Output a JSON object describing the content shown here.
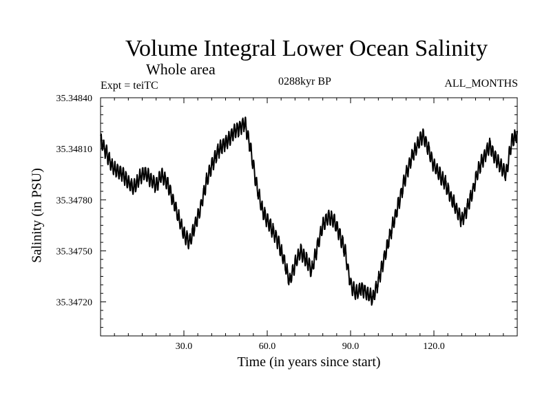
{
  "header": {
    "title": "Volume Integral Lower Ocean Salinity",
    "subtitle": "Whole area",
    "experiment": "Expt = teiTC",
    "period": "0288kyr BP",
    "months": "ALL_MONTHS"
  },
  "chart_data": {
    "type": "line",
    "title": "Volume Integral Lower Ocean Salinity",
    "xlabel": "Time (in years since start)",
    "ylabel": "Salinity (in PSU)",
    "xlim": [
      0,
      150
    ],
    "ylim": [
      35.347,
      35.3484
    ],
    "xticks": [
      30.0,
      60.0,
      90.0,
      120.0
    ],
    "xtick_labels": [
      "30.0",
      "60.0",
      "90.0",
      "120.0"
    ],
    "yticks": [
      35.3472,
      35.3475,
      35.3478,
      35.3481,
      35.3484
    ],
    "ytick_labels": [
      "35.34720",
      "35.34750",
      "35.34780",
      "35.34810",
      "35.34840"
    ],
    "grid": false,
    "series": [
      {
        "name": "Lower ocean salinity",
        "color": "#000000",
        "x": [
          0,
          2,
          4,
          6,
          8,
          10,
          12,
          14,
          16,
          18,
          20,
          22,
          24,
          26,
          28,
          30,
          32,
          34,
          36,
          38,
          40,
          42,
          44,
          46,
          48,
          50,
          52,
          54,
          56,
          58,
          60,
          62,
          64,
          66,
          68,
          70,
          72,
          74,
          76,
          78,
          80,
          82,
          84,
          86,
          88,
          90,
          92,
          94,
          96,
          98,
          100,
          102,
          104,
          106,
          108,
          110,
          112,
          114,
          116,
          118,
          120,
          122,
          124,
          126,
          128,
          130,
          132,
          134,
          136,
          138,
          140,
          142,
          144,
          146,
          148,
          150
        ],
        "values": [
          35.34815,
          35.34808,
          35.348,
          35.34797,
          35.34795,
          35.3479,
          35.34787,
          35.34793,
          35.34796,
          35.34792,
          35.34788,
          35.34795,
          35.3479,
          35.3478,
          35.3477,
          35.3476,
          35.34755,
          35.34765,
          35.34775,
          35.3479,
          35.348,
          35.34808,
          35.34812,
          35.34815,
          35.3482,
          35.34822,
          35.34825,
          35.3481,
          35.3479,
          35.34775,
          35.34768,
          35.34762,
          35.34755,
          35.34745,
          35.34732,
          35.34742,
          35.3475,
          35.34745,
          35.34738,
          35.34752,
          35.34765,
          35.3477,
          35.34768,
          35.3476,
          35.3475,
          35.3473,
          35.34725,
          35.34728,
          35.34725,
          35.34722,
          35.34732,
          35.34745,
          35.34758,
          35.3477,
          35.34782,
          35.34795,
          35.34805,
          35.34812,
          35.34818,
          35.3481,
          35.348,
          35.34795,
          35.3479,
          35.34782,
          35.34775,
          35.34768,
          35.34775,
          35.34785,
          35.34798,
          35.34805,
          35.34812,
          35.34805,
          35.348,
          35.34795,
          35.34815,
          35.34818
        ]
      }
    ]
  }
}
